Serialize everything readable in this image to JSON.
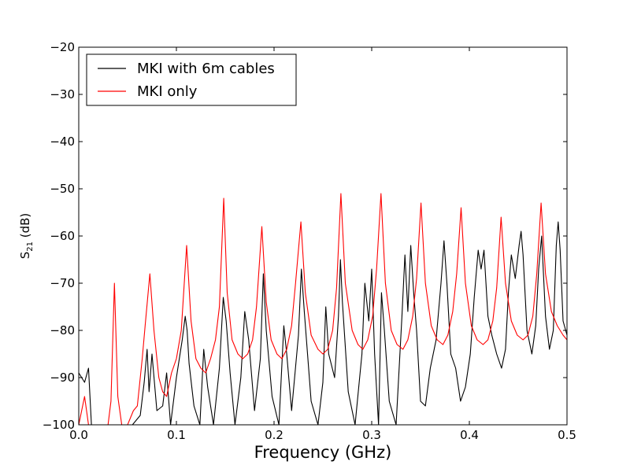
{
  "chart_data": {
    "type": "line",
    "xlabel": "Frequency (GHz)",
    "ylabel_main": "S",
    "ylabel_sub": "21",
    "ylabel_unit": " (dB)",
    "xlim": [
      0.0,
      0.5
    ],
    "ylim": [
      -100,
      -20
    ],
    "x_ticks": [
      0.0,
      0.1,
      0.2,
      0.3,
      0.4,
      0.5
    ],
    "x_tick_labels": [
      "0.0",
      "0.1",
      "0.2",
      "0.3",
      "0.4",
      "0.5"
    ],
    "y_ticks": [
      -100,
      -90,
      -80,
      -70,
      -60,
      -50,
      -40,
      -30,
      -20
    ],
    "y_tick_labels": [
      "−100",
      "−90",
      "−80",
      "−70",
      "−60",
      "−50",
      "−40",
      "−30",
      "−20"
    ],
    "grid": false,
    "legend_position": "top-left",
    "series": [
      {
        "name": "MKI with 6m cables",
        "color": "#000000",
        "x": [
          0.0,
          0.006,
          0.01,
          0.013,
          0.02,
          0.025,
          0.03,
          0.035,
          0.04,
          0.048,
          0.055,
          0.063,
          0.067,
          0.07,
          0.072,
          0.075,
          0.08,
          0.086,
          0.09,
          0.094,
          0.1,
          0.106,
          0.109,
          0.111,
          0.113,
          0.118,
          0.124,
          0.128,
          0.132,
          0.138,
          0.144,
          0.148,
          0.151,
          0.155,
          0.16,
          0.166,
          0.17,
          0.174,
          0.18,
          0.186,
          0.189,
          0.192,
          0.198,
          0.205,
          0.21,
          0.213,
          0.218,
          0.225,
          0.228,
          0.231,
          0.238,
          0.245,
          0.25,
          0.253,
          0.256,
          0.262,
          0.266,
          0.268,
          0.27,
          0.276,
          0.283,
          0.29,
          0.293,
          0.297,
          0.3,
          0.303,
          0.307,
          0.31,
          0.313,
          0.318,
          0.325,
          0.331,
          0.334,
          0.337,
          0.34,
          0.343,
          0.346,
          0.35,
          0.355,
          0.36,
          0.366,
          0.371,
          0.374,
          0.377,
          0.381,
          0.386,
          0.391,
          0.396,
          0.401,
          0.405,
          0.409,
          0.412,
          0.415,
          0.419,
          0.423,
          0.428,
          0.433,
          0.437,
          0.44,
          0.443,
          0.447,
          0.451,
          0.453,
          0.455,
          0.459,
          0.464,
          0.468,
          0.471,
          0.474,
          0.478,
          0.482,
          0.486,
          0.489,
          0.491,
          0.493,
          0.496,
          0.5
        ],
        "y": [
          -89,
          -91,
          -88,
          -100,
          -100,
          -100,
          -100,
          -100,
          -100,
          -100,
          -100,
          -98,
          -91,
          -84,
          -93,
          -85,
          -97,
          -96,
          -89,
          -100,
          -90,
          -82,
          -77,
          -80,
          -87,
          -96,
          -100,
          -84,
          -92,
          -100,
          -88,
          -73,
          -78,
          -89,
          -100,
          -90,
          -76,
          -82,
          -97,
          -86,
          -68,
          -80,
          -94,
          -100,
          -79,
          -85,
          -97,
          -81,
          -67,
          -76,
          -95,
          -100,
          -91,
          -75,
          -85,
          -90,
          -77,
          -65,
          -74,
          -93,
          -100,
          -85,
          -70,
          -78,
          -67,
          -85,
          -100,
          -72,
          -80,
          -95,
          -100,
          -77,
          -64,
          -76,
          -62,
          -72,
          -80,
          -95,
          -96,
          -88,
          -82,
          -70,
          -61,
          -70,
          -85,
          -88,
          -95,
          -92,
          -85,
          -73,
          -63,
          -67,
          -63,
          -77,
          -81,
          -85,
          -88,
          -84,
          -72,
          -64,
          -69,
          -62,
          -59,
          -64,
          -80,
          -85,
          -79,
          -67,
          -60,
          -77,
          -84,
          -80,
          -62,
          -57,
          -63,
          -78,
          -81
        ]
      },
      {
        "name": "MKI only",
        "color": "#ff0000",
        "x": [
          0.0,
          0.003,
          0.006,
          0.01,
          0.03,
          0.033,
          0.0365,
          0.04,
          0.044,
          0.05,
          0.056,
          0.06,
          0.065,
          0.068,
          0.0728,
          0.077,
          0.082,
          0.086,
          0.09,
          0.095,
          0.1,
          0.105,
          0.1105,
          0.115,
          0.12,
          0.125,
          0.13,
          0.135,
          0.14,
          0.144,
          0.1485,
          0.152,
          0.157,
          0.163,
          0.168,
          0.173,
          0.178,
          0.182,
          0.1875,
          0.192,
          0.197,
          0.203,
          0.208,
          0.213,
          0.218,
          0.222,
          0.2275,
          0.232,
          0.238,
          0.245,
          0.25,
          0.255,
          0.26,
          0.264,
          0.2685,
          0.273,
          0.28,
          0.286,
          0.291,
          0.296,
          0.301,
          0.305,
          0.3095,
          0.314,
          0.32,
          0.326,
          0.332,
          0.337,
          0.342,
          0.346,
          0.3505,
          0.355,
          0.361,
          0.367,
          0.373,
          0.378,
          0.383,
          0.387,
          0.3915,
          0.396,
          0.402,
          0.408,
          0.414,
          0.419,
          0.424,
          0.428,
          0.4325,
          0.437,
          0.443,
          0.449,
          0.455,
          0.46,
          0.465,
          0.469,
          0.4735,
          0.478,
          0.484,
          0.49,
          0.496,
          0.5
        ],
        "y": [
          -100,
          -97,
          -94,
          -100,
          -100,
          -95,
          -70,
          -94,
          -100,
          -100,
          -97,
          -96,
          -86,
          -79,
          -68,
          -80,
          -90,
          -93,
          -94,
          -89,
          -86,
          -80,
          -62,
          -78,
          -86,
          -88,
          -89,
          -86,
          -82,
          -75,
          -52,
          -72,
          -82,
          -85,
          -86,
          -85,
          -82,
          -75,
          -58,
          -74,
          -82,
          -85,
          -86,
          -84,
          -79,
          -70,
          -57,
          -72,
          -81,
          -84,
          -85,
          -84,
          -80,
          -71,
          -51,
          -70,
          -80,
          -83,
          -84,
          -82,
          -77,
          -67,
          -51,
          -70,
          -80,
          -83,
          -84,
          -82,
          -77,
          -69,
          -53,
          -70,
          -79,
          -82,
          -83,
          -81,
          -76,
          -68,
          -54,
          -70,
          -79,
          -82,
          -83,
          -82,
          -78,
          -71,
          -56,
          -70,
          -78,
          -81,
          -82,
          -81,
          -77,
          -68,
          -53,
          -68,
          -76,
          -79,
          -81,
          -82
        ]
      }
    ]
  }
}
